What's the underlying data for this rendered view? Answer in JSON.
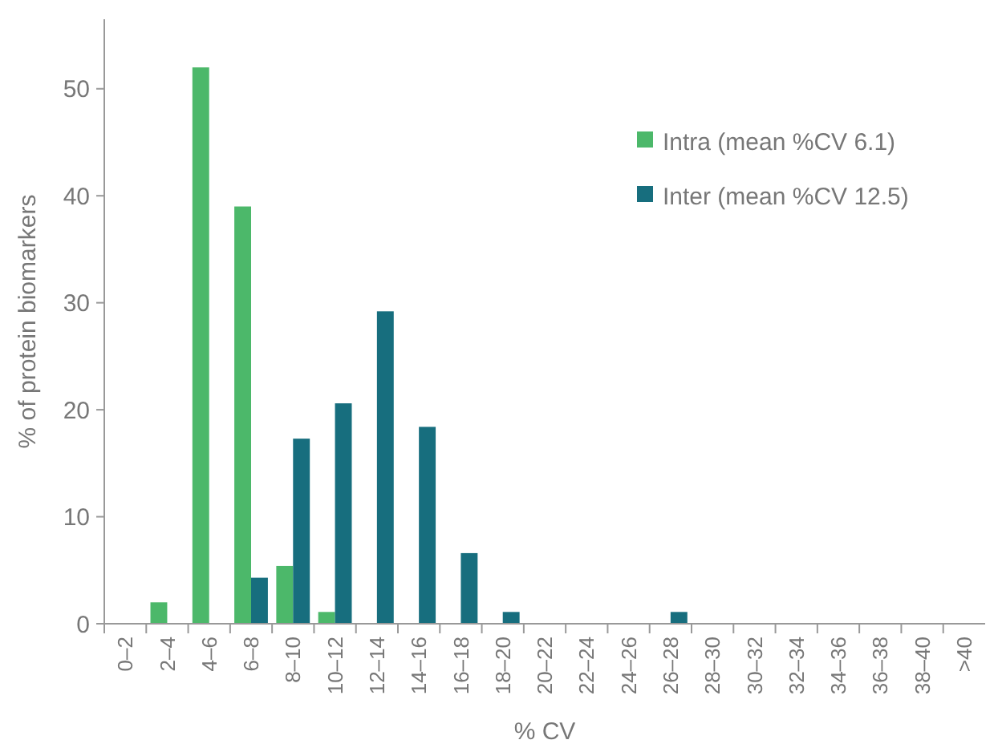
{
  "chart_data": {
    "type": "bar",
    "xlabel": "% CV",
    "ylabel": "% of protein biomarkers",
    "categories": [
      "0–2",
      "2–4",
      "4–6",
      "6–8",
      "8–10",
      "10–12",
      "12–14",
      "14–16",
      "16–18",
      "18–20",
      "20–22",
      "22–24",
      "24–26",
      "26–28",
      "28–30",
      "30–32",
      "32–34",
      "34–36",
      "36–38",
      "38–40",
      ">40"
    ],
    "series": [
      {
        "name": "Intra (mean  %CV 6.1)",
        "color": "#4cb86a",
        "values": [
          0,
          2,
          52,
          39,
          5.4,
          1.1,
          0,
          0,
          0,
          0,
          0,
          0,
          0,
          0,
          0,
          0,
          0,
          0,
          0,
          0,
          0
        ]
      },
      {
        "name": "Inter (mean  %CV 12.5)",
        "color": "#176e7e",
        "values": [
          0,
          0,
          0,
          4.3,
          17.3,
          20.6,
          29.2,
          18.4,
          6.6,
          1.1,
          0,
          0,
          0,
          1.1,
          0,
          0,
          0,
          0,
          0,
          0,
          0
        ]
      }
    ],
    "ylim": [
      0,
      56.5
    ],
    "yticks": [
      0,
      10,
      20,
      30,
      40,
      50
    ],
    "legend": "top right"
  }
}
